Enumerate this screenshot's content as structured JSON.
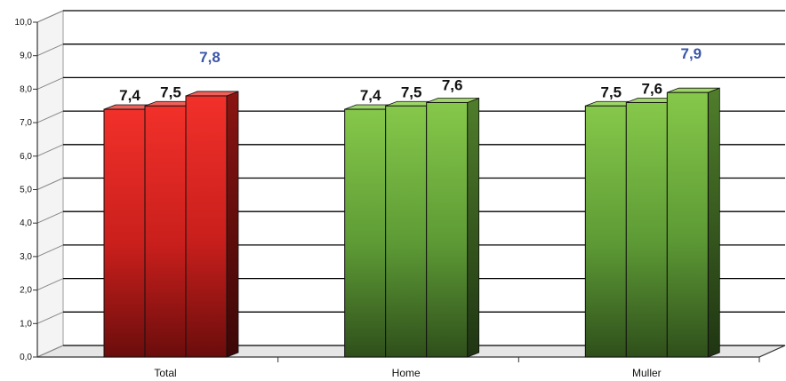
{
  "chart_data": {
    "type": "bar",
    "title": "",
    "xlabel": "",
    "ylabel": "",
    "ylim": [
      0,
      10
    ],
    "yticks": [
      "0,0",
      "1,0",
      "2,0",
      "3,0",
      "4,0",
      "5,0",
      "6,0",
      "7,0",
      "8,0",
      "9,0",
      "10,0"
    ],
    "grid": true,
    "categories": [
      "Total",
      "Home",
      "Muller"
    ],
    "series": [
      {
        "values": [
          7.4,
          7.4,
          7.5
        ],
        "labels": [
          "7,4",
          "7,4",
          "7,5"
        ]
      },
      {
        "values": [
          7.5,
          7.5,
          7.6
        ],
        "labels": [
          "7,5",
          "7,5",
          "7,6"
        ]
      },
      {
        "values": [
          7.8,
          7.6,
          7.9
        ],
        "labels": [
          "7,8",
          "7,6",
          "7,9"
        ]
      }
    ],
    "group_colors": [
      "#e8302c",
      "#7cc043",
      "#7cc043"
    ],
    "highlight_label_color": "#3a55a8",
    "highlighted_labels": [
      [
        0,
        2
      ],
      [
        2,
        2
      ]
    ]
  }
}
